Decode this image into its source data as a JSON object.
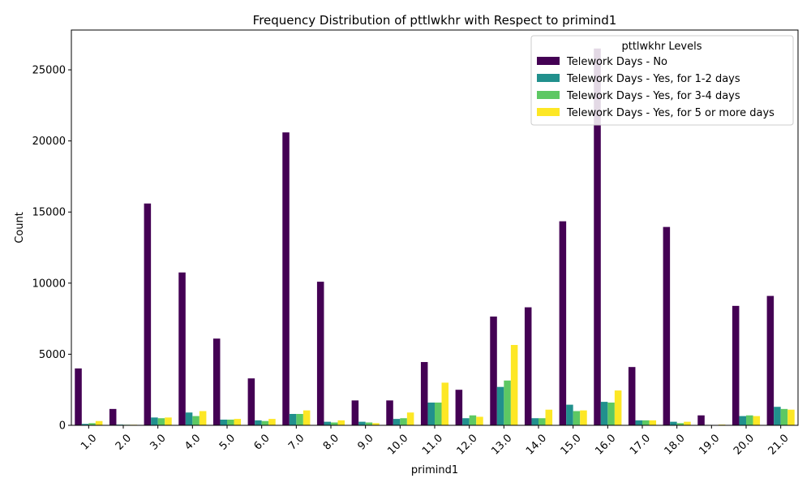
{
  "chart_data": {
    "type": "bar",
    "title": "Frequency Distribution of pttlwkhr with Respect to primind1",
    "xlabel": "primind1",
    "ylabel": "Count",
    "ylim": [
      0,
      27800
    ],
    "yticks": [
      0,
      5000,
      10000,
      15000,
      20000,
      25000
    ],
    "categories": [
      "1.0",
      "2.0",
      "3.0",
      "4.0",
      "5.0",
      "6.0",
      "7.0",
      "8.0",
      "9.0",
      "10.0",
      "11.0",
      "12.0",
      "13.0",
      "14.0",
      "15.0",
      "16.0",
      "17.0",
      "18.0",
      "19.0",
      "20.0",
      "21.0"
    ],
    "legend": {
      "title": "pttlwkhr Levels",
      "placement": "top-right"
    },
    "series": [
      {
        "name": "Telework Days - No",
        "color": "#440154",
        "values": [
          4000,
          1150,
          15600,
          10750,
          6100,
          3300,
          20600,
          10100,
          1750,
          1750,
          4450,
          2500,
          7650,
          8300,
          14350,
          26500,
          4100,
          13950,
          700,
          8400,
          9100
        ]
      },
      {
        "name": "Telework Days - Yes, for 1-2 days",
        "color": "#21908d",
        "values": [
          100,
          50,
          550,
          900,
          400,
          350,
          800,
          250,
          250,
          450,
          1600,
          500,
          2700,
          500,
          1450,
          1650,
          350,
          250,
          30,
          650,
          1300
        ]
      },
      {
        "name": "Telework Days - Yes, for 3-4 days",
        "color": "#5dc863",
        "values": [
          150,
          40,
          500,
          650,
          400,
          300,
          800,
          200,
          200,
          500,
          1600,
          700,
          3150,
          500,
          1000,
          1600,
          350,
          150,
          20,
          700,
          1150
        ]
      },
      {
        "name": "Telework Days - Yes, for 5 or more days",
        "color": "#fde725",
        "values": [
          300,
          40,
          550,
          1000,
          450,
          450,
          1050,
          350,
          150,
          900,
          3000,
          600,
          5650,
          1100,
          1050,
          2450,
          350,
          250,
          50,
          650,
          1100
        ]
      }
    ]
  }
}
